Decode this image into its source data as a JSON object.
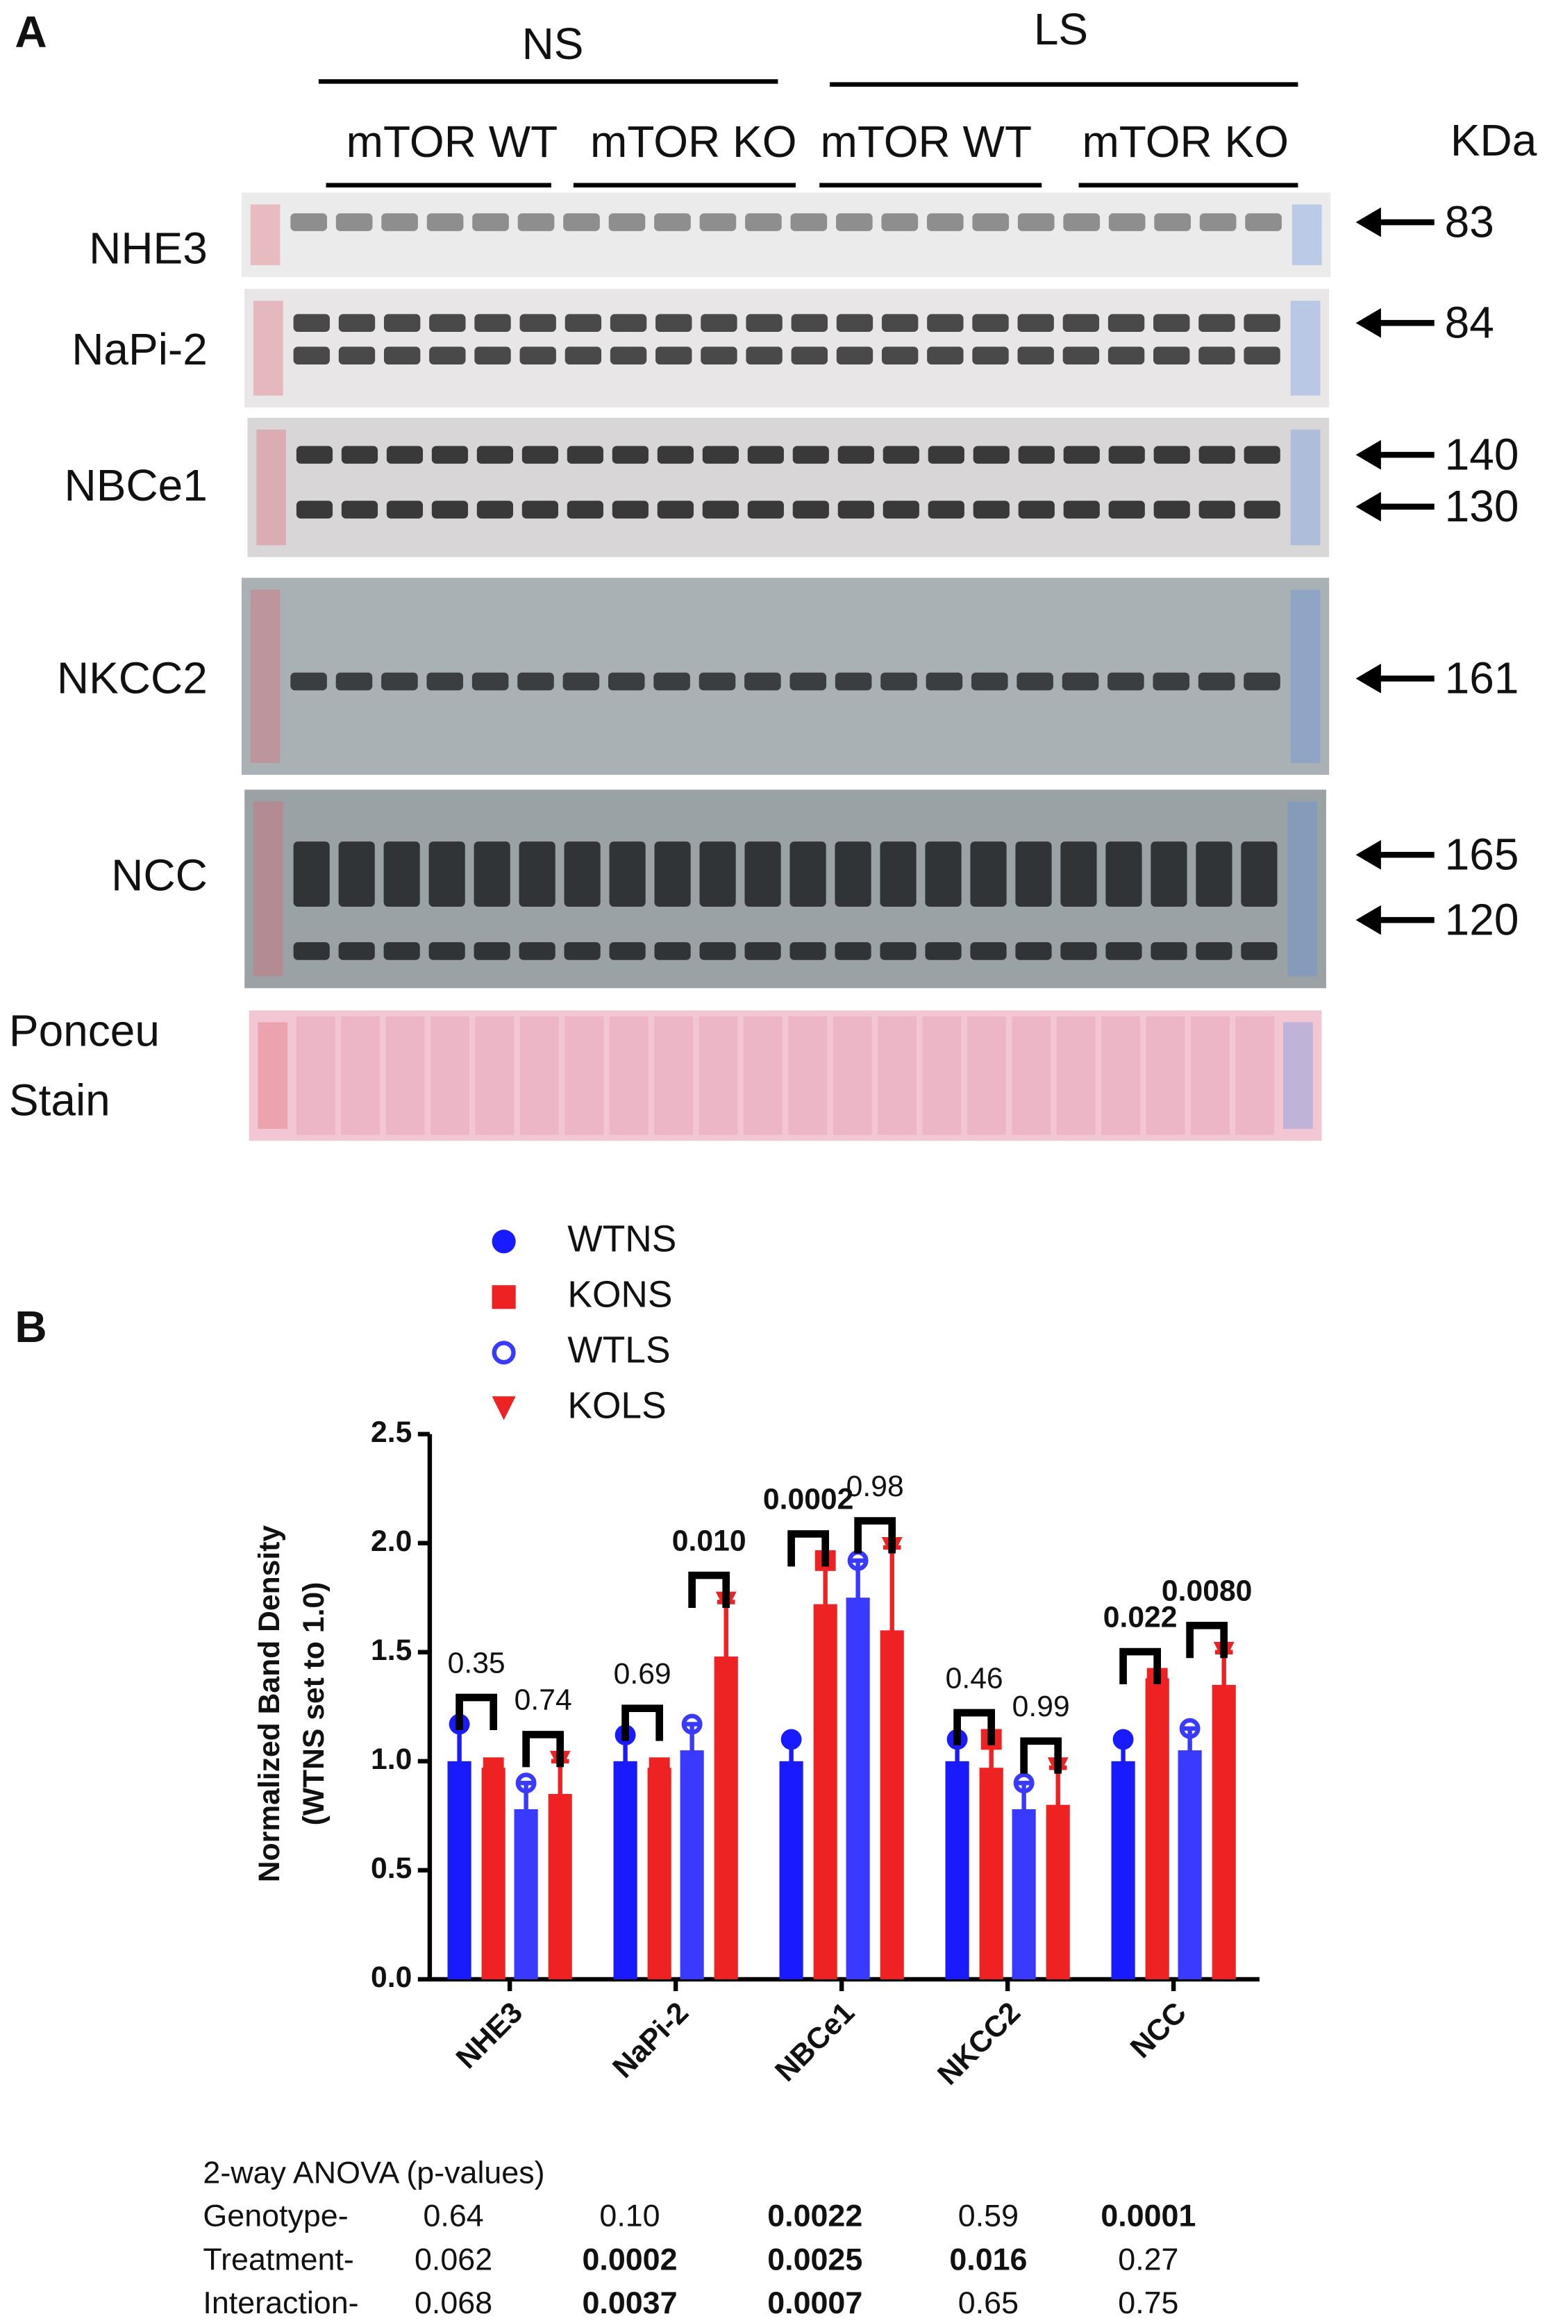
{
  "panel_a": {
    "label": "A",
    "treatments": [
      "NS",
      "LS"
    ],
    "groups": [
      "mTOR WT",
      "mTOR KO",
      "mTOR WT",
      "mTOR KO"
    ],
    "unit": "KDa",
    "blots": [
      {
        "name": "NHE3",
        "markers": [
          "83"
        ]
      },
      {
        "name": "NaPi-2",
        "markers": [
          "84"
        ]
      },
      {
        "name": "NBCe1",
        "markers": [
          "140",
          "130"
        ]
      },
      {
        "name": "NKCC2",
        "markers": [
          "161"
        ]
      },
      {
        "name": "NCC",
        "markers": [
          "165",
          "120"
        ]
      },
      {
        "name": "Ponceu Stain",
        "lines": [
          "Ponceu",
          "Stain"
        ],
        "markers": []
      }
    ]
  },
  "panel_b": {
    "label": "B"
  },
  "chart_data": {
    "type": "bar",
    "y_label": [
      "Normalized Band Density",
      "(WTNS set to 1.0)"
    ],
    "categories": [
      "NHE3",
      "NaPi-2",
      "NBCe1",
      "NKCC2",
      "NCC"
    ],
    "series": [
      {
        "name": "WTNS",
        "color": "#1a1aff",
        "marker": "circle",
        "values": [
          1.0,
          1.0,
          1.0,
          1.0,
          1.0
        ],
        "errors": [
          0.17,
          0.12,
          0.1,
          0.1,
          0.1
        ]
      },
      {
        "name": "KONS",
        "color": "#ee2222",
        "marker": "square",
        "values": [
          0.97,
          0.97,
          1.72,
          0.97,
          1.38
        ],
        "errors": [
          0,
          0,
          0.2,
          0.13,
          0
        ]
      },
      {
        "name": "WTLS",
        "color": "#3a3aff",
        "marker": "open-circle",
        "values": [
          0.78,
          1.05,
          1.75,
          0.78,
          1.05
        ],
        "errors": [
          0.12,
          0.12,
          0.17,
          0.12,
          0.1
        ]
      },
      {
        "name": "KOLS",
        "color": "#ee2222",
        "marker": "triangle",
        "values": [
          0.85,
          1.48,
          1.6,
          0.8,
          1.35
        ],
        "errors": [
          0.15,
          0.25,
          0.38,
          0.17,
          0.15
        ]
      }
    ],
    "ylim": [
      0,
      2.5
    ],
    "yticks": [
      {
        "value": 0,
        "label": "0.0"
      },
      0.5,
      {
        "value": 1,
        "label": "1.0"
      },
      1.5,
      {
        "value": 2,
        "label": "2.0"
      },
      2.5
    ],
    "comparisons": [
      {
        "category": 0,
        "pair": [
          0,
          1
        ],
        "label": "0.35",
        "bold": false
      },
      {
        "category": 0,
        "pair": [
          2,
          3
        ],
        "label": "0.74",
        "bold": false
      },
      {
        "category": 1,
        "pair": [
          0,
          1
        ],
        "label": "0.69",
        "bold": false
      },
      {
        "category": 1,
        "pair": [
          2,
          3
        ],
        "label": "0.010",
        "bold": true
      },
      {
        "category": 2,
        "pair": [
          0,
          1
        ],
        "label": "0.0002",
        "bold": true
      },
      {
        "category": 2,
        "pair": [
          2,
          3
        ],
        "label": "0.98",
        "bold": false
      },
      {
        "category": 3,
        "pair": [
          0,
          1
        ],
        "label": "0.46",
        "bold": false
      },
      {
        "category": 3,
        "pair": [
          2,
          3
        ],
        "label": "0.99",
        "bold": false
      },
      {
        "category": 4,
        "pair": [
          0,
          1
        ],
        "label": "0.022",
        "bold": true
      },
      {
        "category": 4,
        "pair": [
          2,
          3
        ],
        "label": "0.0080",
        "bold": true
      }
    ]
  },
  "anova": {
    "title": "2-way ANOVA (p-values)",
    "rows": [
      {
        "label": "Genotype-",
        "values": [
          "0.64",
          "0.10",
          "0.0022",
          "0.59",
          "0.0001"
        ],
        "bold": [
          false,
          false,
          true,
          false,
          true
        ]
      },
      {
        "label": "Treatment-",
        "values": [
          "0.062",
          "0.0002",
          "0.0025",
          "0.016",
          "0.27"
        ],
        "bold": [
          false,
          true,
          true,
          true,
          false
        ]
      },
      {
        "label": "Interaction-",
        "values": [
          "0.068",
          "0.0037",
          "0.0007",
          "0.65",
          "0.75"
        ],
        "bold": [
          false,
          true,
          true,
          false,
          false
        ]
      }
    ]
  }
}
